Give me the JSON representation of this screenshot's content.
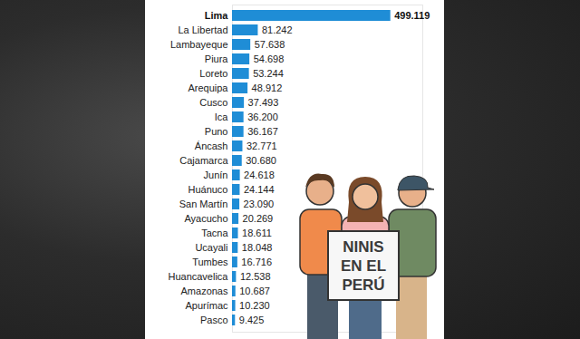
{
  "chart_data": {
    "type": "bar",
    "orientation": "horizontal",
    "categories": [
      "Lima",
      "La Libertad",
      "Lambayeque",
      "Piura",
      "Loreto",
      "Arequipa",
      "Cusco",
      "Ica",
      "Puno",
      "Áncash",
      "Cajamarca",
      "Junín",
      "Huánuco",
      "San Martín",
      "Ayacucho",
      "Tacna",
      "Ucayali",
      "Tumbes",
      "Huancavelica",
      "Amazonas",
      "Apurímac",
      "Pasco"
    ],
    "values": [
      499119,
      81242,
      57638,
      54698,
      53244,
      48912,
      37493,
      36200,
      36167,
      32771,
      30680,
      24618,
      24144,
      23090,
      20269,
      18611,
      18048,
      16716,
      12538,
      10687,
      10230,
      9425
    ],
    "value_labels": [
      "499.119",
      "81.242",
      "57.638",
      "54.698",
      "53.244",
      "48.912",
      "37.493",
      "36.200",
      "36.167",
      "32.771",
      "30.680",
      "24.618",
      "24.144",
      "23.090",
      "20.269",
      "18.611",
      "18.048",
      "16.716",
      "12.538",
      "10.687",
      "10.230",
      "9.425"
    ],
    "color": "#1f8dd6",
    "xlim": [
      0,
      600000
    ],
    "xticks": [],
    "data_labels": true,
    "tick_labels": "y",
    "annotation": [
      "NINIS",
      "EN EL",
      "PERÚ"
    ]
  }
}
